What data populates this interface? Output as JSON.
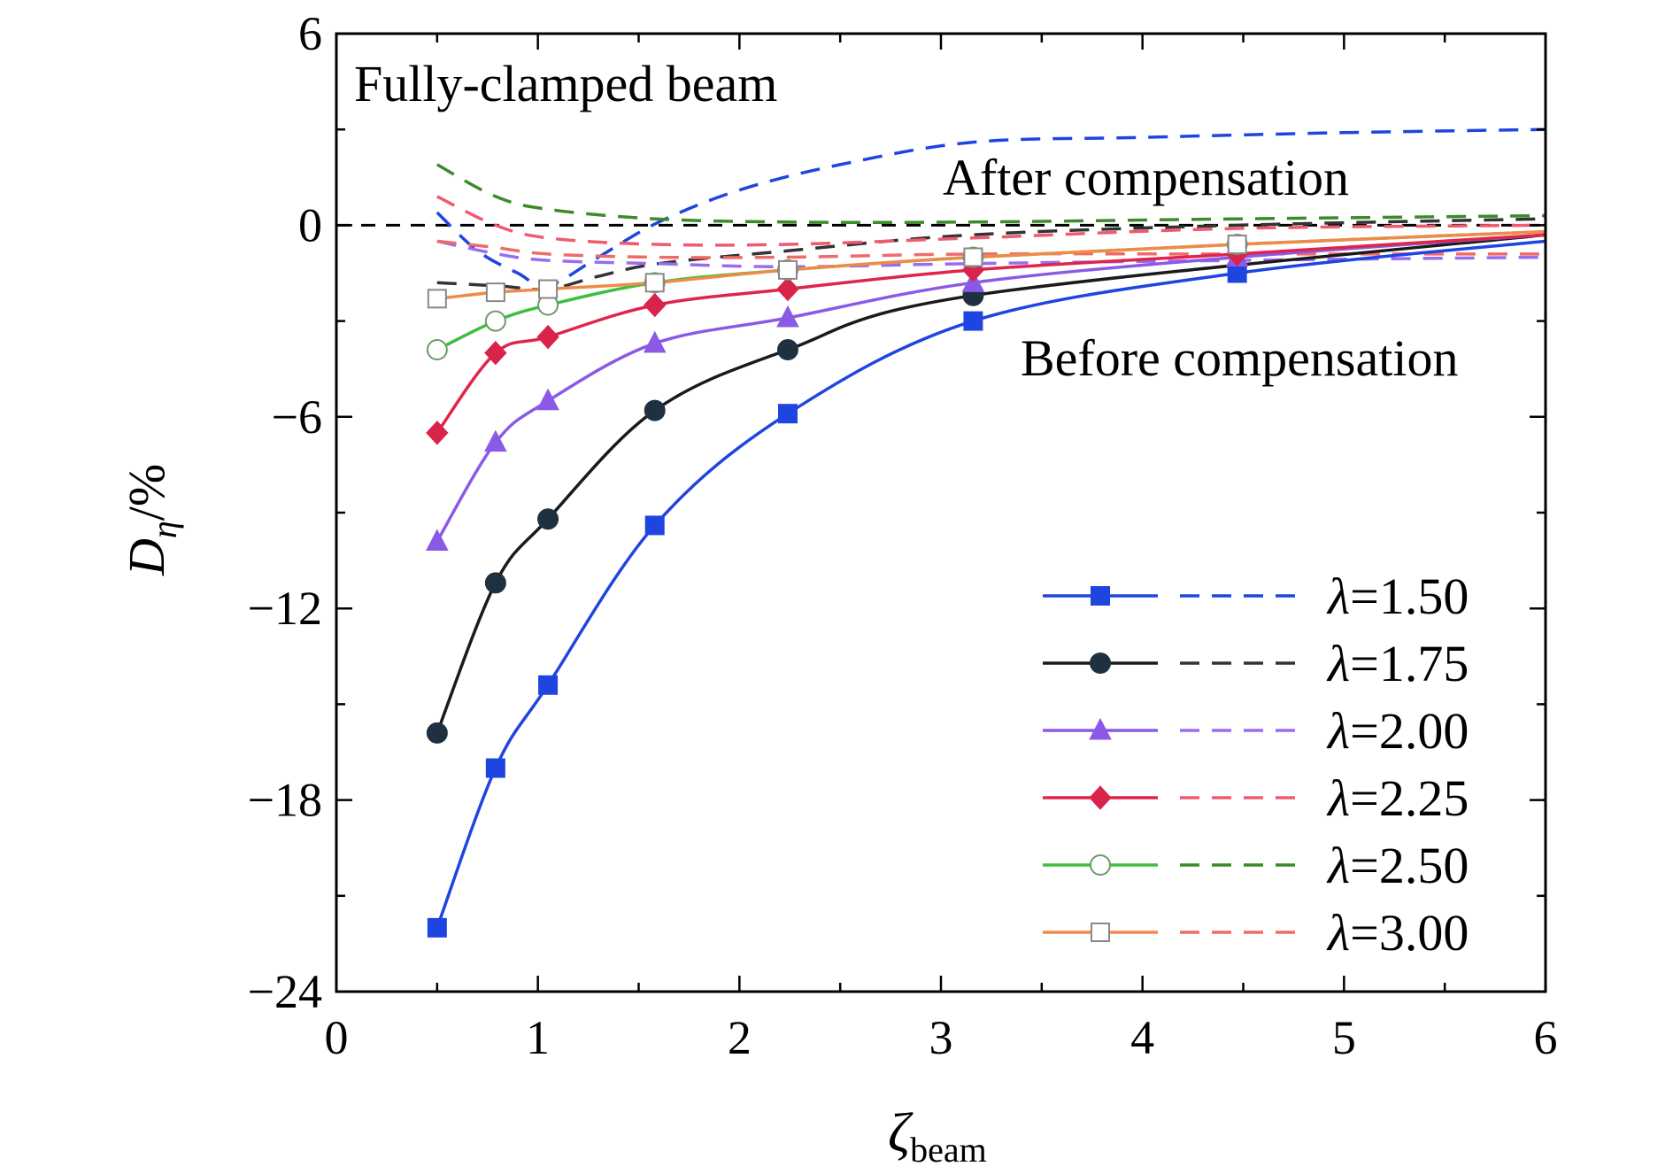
{
  "chart_data": {
    "type": "line",
    "annotations": {
      "title": "Fully-clamped beam",
      "after": "After compensation",
      "before": "Before compensation"
    },
    "colors": {
      "after_text": "#e8293a",
      "before_text": "#1f3fe0"
    },
    "xaxis": {
      "label_main": "ζ",
      "label_sub": "beam",
      "range": [
        0,
        6
      ],
      "ticks": [
        0,
        1,
        2,
        3,
        4,
        5,
        6
      ],
      "tick_labels": [
        "0",
        "1",
        "2",
        "3",
        "4",
        "5",
        "6"
      ]
    },
    "yaxis": {
      "label_main": "D",
      "label_sub": "η",
      "label_suffix": "/%",
      "range": [
        -24,
        6
      ],
      "ticks": [
        -24,
        -18,
        -12,
        -6,
        0,
        6
      ],
      "tick_labels": [
        "−24",
        "−18",
        "−12",
        "−6",
        "0",
        "6"
      ]
    },
    "reference_line": {
      "y": 0,
      "style": "dashed",
      "color": "#000000"
    },
    "legend": {
      "placement": "bottom-right",
      "entries": [
        {
          "lambda": "λ",
          "value": "=1.50"
        },
        {
          "lambda": "λ",
          "value": "=1.75"
        },
        {
          "lambda": "λ",
          "value": "=2.00"
        },
        {
          "lambda": "λ",
          "value": "=2.25"
        },
        {
          "lambda": "λ",
          "value": "=2.50"
        },
        {
          "lambda": "λ",
          "value": "=3.00"
        }
      ]
    },
    "series": [
      {
        "name": "λ=1.50",
        "color_before": "#1f45e0",
        "color_after": "#1f45e0",
        "marker": "square",
        "marker_fill": "#1f45e0",
        "before": [
          [
            0.5,
            -22.0
          ],
          [
            0.79,
            -17.0
          ],
          [
            1.05,
            -14.4
          ],
          [
            1.58,
            -9.4
          ],
          [
            2.24,
            -5.9
          ],
          [
            3.16,
            -3.0
          ],
          [
            4.47,
            -1.5
          ]
        ],
        "before_curve_end": [
          6.0,
          -0.5
        ],
        "after": [
          [
            0.5,
            0.4
          ],
          [
            0.7,
            -0.8
          ],
          [
            0.9,
            -1.5
          ],
          [
            1.05,
            -1.9
          ],
          [
            1.3,
            -1.0
          ],
          [
            1.6,
            0.1
          ],
          [
            2.0,
            1.1
          ],
          [
            2.5,
            1.9
          ],
          [
            3.16,
            2.6
          ],
          [
            4.0,
            2.75
          ],
          [
            5.0,
            2.9
          ],
          [
            6.0,
            3.0
          ]
        ]
      },
      {
        "name": "λ=1.75",
        "color_before": "#1a1a1a",
        "color_after": "#333333",
        "marker": "circle",
        "marker_fill": "#1f3140",
        "before": [
          [
            0.5,
            -15.9
          ],
          [
            0.79,
            -11.2
          ],
          [
            1.05,
            -9.2
          ],
          [
            1.58,
            -5.8
          ],
          [
            2.24,
            -3.9
          ],
          [
            3.16,
            -2.2
          ]
        ],
        "before_curve_end": [
          6.0,
          -0.3
        ],
        "after": [
          [
            0.5,
            -1.8
          ],
          [
            0.8,
            -1.9
          ],
          [
            1.05,
            -2.0
          ],
          [
            1.3,
            -1.6
          ],
          [
            1.6,
            -1.2
          ],
          [
            2.24,
            -0.8
          ],
          [
            3.16,
            -0.3
          ],
          [
            4.47,
            0.0
          ],
          [
            6.0,
            0.2
          ]
        ]
      },
      {
        "name": "λ=2.00",
        "color_before": "#8a5ae6",
        "color_after": "#9a6cf0",
        "marker": "triangle",
        "marker_fill": "#8a5ae6",
        "before": [
          [
            0.5,
            -9.9
          ],
          [
            0.79,
            -6.8
          ],
          [
            1.05,
            -5.5
          ],
          [
            1.58,
            -3.7
          ],
          [
            2.24,
            -2.9
          ],
          [
            3.16,
            -1.8
          ],
          [
            4.47,
            -1.0
          ]
        ],
        "before_curve_end": [
          6.0,
          -0.3
        ],
        "after": [
          [
            0.5,
            -0.5
          ],
          [
            0.8,
            -0.9
          ],
          [
            1.05,
            -1.1
          ],
          [
            1.58,
            -1.2
          ],
          [
            2.24,
            -1.3
          ],
          [
            3.16,
            -1.2
          ],
          [
            4.47,
            -1.1
          ],
          [
            6.0,
            -1.0
          ]
        ]
      },
      {
        "name": "λ=2.25",
        "color_before": "#e0244a",
        "color_after": "#f05a6e",
        "marker": "diamond",
        "marker_fill": "#d8244a",
        "before": [
          [
            0.5,
            -6.5
          ],
          [
            0.79,
            -4.0
          ],
          [
            1.05,
            -3.5
          ],
          [
            1.58,
            -2.5
          ],
          [
            2.24,
            -2.0
          ],
          [
            3.16,
            -1.4
          ],
          [
            4.47,
            -0.9
          ]
        ],
        "before_curve_end": [
          6.0,
          -0.3
        ],
        "after": [
          [
            0.5,
            0.9
          ],
          [
            0.79,
            0.0
          ],
          [
            1.05,
            -0.4
          ],
          [
            1.58,
            -0.6
          ],
          [
            2.24,
            -0.6
          ],
          [
            3.16,
            -0.4
          ],
          [
            4.47,
            -0.1
          ],
          [
            6.0,
            0.0
          ]
        ]
      },
      {
        "name": "λ=2.50",
        "color_before": "#3cc03c",
        "color_after": "#3c8a2a",
        "marker": "circle-open",
        "marker_fill": "#ffffff",
        "before": [
          [
            0.5,
            -3.9
          ],
          [
            0.79,
            -3.0
          ],
          [
            1.05,
            -2.5
          ],
          [
            1.58,
            -1.8
          ],
          [
            2.24,
            -1.4
          ],
          [
            3.16,
            -1.0
          ],
          [
            4.47,
            -0.6
          ]
        ],
        "before_curve_end": [
          6.0,
          -0.2
        ],
        "after": [
          [
            0.5,
            1.9
          ],
          [
            0.79,
            0.9
          ],
          [
            1.05,
            0.5
          ],
          [
            1.58,
            0.2
          ],
          [
            2.24,
            0.1
          ],
          [
            3.16,
            0.1
          ],
          [
            4.47,
            0.2
          ],
          [
            6.0,
            0.3
          ]
        ]
      },
      {
        "name": "λ=3.00",
        "color_before": "#f08a4a",
        "color_after": "#f06a6a",
        "marker": "square-open",
        "marker_fill": "#ffffff",
        "before": [
          [
            0.5,
            -2.3
          ],
          [
            0.79,
            -2.1
          ],
          [
            1.05,
            -2.0
          ],
          [
            1.58,
            -1.8
          ],
          [
            2.24,
            -1.4
          ],
          [
            3.16,
            -1.0
          ],
          [
            4.47,
            -0.6
          ]
        ],
        "before_curve_end": [
          6.0,
          -0.2
        ],
        "after": [
          [
            0.5,
            -0.5
          ],
          [
            0.79,
            -0.7
          ],
          [
            1.05,
            -0.9
          ],
          [
            1.58,
            -1.0
          ],
          [
            2.24,
            -1.0
          ],
          [
            3.16,
            -0.9
          ],
          [
            4.47,
            -0.9
          ],
          [
            6.0,
            -0.9
          ]
        ]
      }
    ]
  }
}
